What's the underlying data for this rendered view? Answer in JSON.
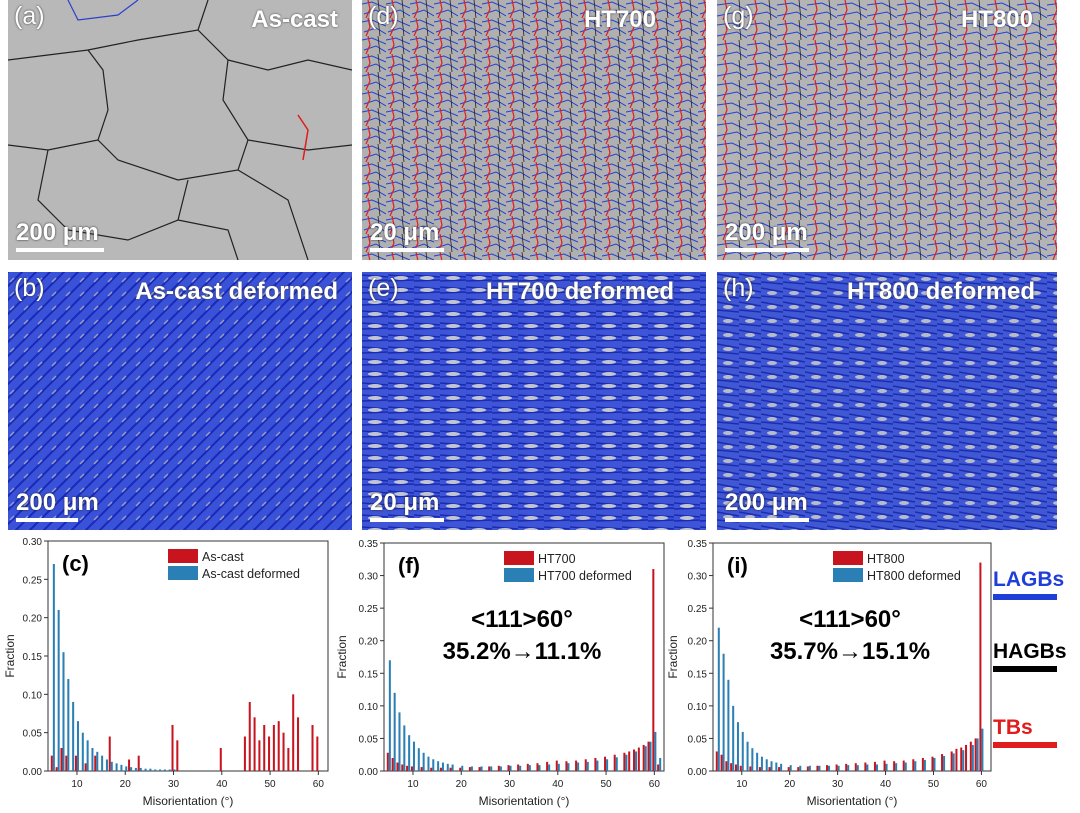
{
  "panels": {
    "a": {
      "label": "(a)",
      "title": "As-cast",
      "scale": "200 μm"
    },
    "d": {
      "label": "(d)",
      "title": "HT700",
      "scale": "20 μm"
    },
    "g": {
      "label": "(g)",
      "title": "HT800",
      "scale": "200 μm"
    },
    "b": {
      "label": "(b)",
      "title": "As-cast deformed",
      "scale": "200 μm"
    },
    "e": {
      "label": "(e)",
      "title": "HT700 deformed",
      "scale": "20 μm"
    },
    "h": {
      "label": "(h)",
      "title": "HT800 deformed",
      "scale": "200 μm"
    }
  },
  "colors": {
    "lagb": "#1f3fd8",
    "hagb": "#000000",
    "tb": "#e01c1c",
    "series_red": "#c8141e",
    "series_blue": "#2a7fb4",
    "grain": "#b9b9b9"
  },
  "boundary_legend": {
    "lagbs": "LAGBs",
    "hagbs": "HAGBs",
    "tbs": "TBs"
  },
  "chart_data": [
    {
      "id": "c",
      "type": "bar",
      "panel_label": "(c)",
      "xlabel": "Misorientation (°)",
      "ylabel": "Fraction",
      "xlim": [
        4,
        62
      ],
      "ylim": [
        0,
        0.3
      ],
      "xticks": [
        10,
        20,
        30,
        40,
        50,
        60
      ],
      "yticks": [
        0.0,
        0.05,
        0.1,
        0.15,
        0.2,
        0.25,
        0.3
      ],
      "annotation": [],
      "series": [
        {
          "name": "As-cast",
          "color": "#c8141e",
          "x": [
            5,
            6,
            7,
            8,
            10,
            12,
            14,
            17,
            21,
            23,
            30,
            31,
            40,
            45,
            46,
            47,
            48,
            49,
            50,
            51,
            52,
            53,
            54,
            55,
            56,
            59,
            60
          ],
          "values": [
            0.02,
            0.005,
            0.03,
            0.02,
            0.02,
            0.01,
            0.02,
            0.045,
            0.015,
            0.02,
            0.06,
            0.04,
            0.03,
            0.045,
            0.09,
            0.07,
            0.04,
            0.06,
            0.045,
            0.06,
            0.065,
            0.05,
            0.03,
            0.1,
            0.07,
            0.06,
            0.045
          ]
        },
        {
          "name": "As-cast deformed",
          "color": "#2a7fb4",
          "x": [
            5,
            6,
            7,
            8,
            9,
            10,
            11,
            12,
            13,
            14,
            15,
            16,
            17,
            18,
            19,
            20,
            21,
            22,
            23,
            24,
            25,
            26,
            27,
            28,
            29,
            30
          ],
          "values": [
            0.27,
            0.21,
            0.155,
            0.12,
            0.09,
            0.065,
            0.05,
            0.04,
            0.03,
            0.025,
            0.02,
            0.015,
            0.012,
            0.01,
            0.008,
            0.006,
            0.005,
            0.004,
            0.004,
            0.003,
            0.003,
            0.002,
            0.002,
            0.002,
            0.002,
            0.002
          ]
        }
      ]
    },
    {
      "id": "f",
      "type": "bar",
      "panel_label": "(f)",
      "xlabel": "Misorientation (°)",
      "ylabel": "Fraction",
      "xlim": [
        4,
        62
      ],
      "ylim": [
        0,
        0.35
      ],
      "xticks": [
        10,
        20,
        30,
        40,
        50,
        60
      ],
      "yticks": [
        0.0,
        0.05,
        0.1,
        0.15,
        0.2,
        0.25,
        0.3,
        0.35
      ],
      "annotation": [
        "<111>60°",
        "35.2%→11.1%"
      ],
      "series": [
        {
          "name": "HT700",
          "color": "#c8141e",
          "x": [
            5,
            6,
            7,
            8,
            9,
            10,
            12,
            14,
            16,
            18,
            20,
            22,
            24,
            26,
            28,
            30,
            32,
            34,
            36,
            38,
            40,
            42,
            44,
            46,
            48,
            50,
            52,
            54,
            55,
            56,
            57,
            58,
            59,
            60,
            61
          ],
          "values": [
            0.028,
            0.02,
            0.013,
            0.01,
            0.008,
            0.007,
            0.006,
            0.005,
            0.005,
            0.005,
            0.005,
            0.006,
            0.006,
            0.007,
            0.008,
            0.009,
            0.01,
            0.011,
            0.012,
            0.014,
            0.016,
            0.015,
            0.016,
            0.018,
            0.02,
            0.022,
            0.025,
            0.028,
            0.03,
            0.033,
            0.036,
            0.04,
            0.045,
            0.31,
            0.01
          ]
        },
        {
          "name": "HT700 deformed",
          "color": "#2a7fb4",
          "x": [
            5,
            6,
            7,
            8,
            9,
            10,
            11,
            12,
            13,
            14,
            15,
            16,
            17,
            18,
            20,
            22,
            24,
            26,
            28,
            30,
            32,
            34,
            36,
            38,
            40,
            42,
            44,
            46,
            48,
            50,
            52,
            54,
            56,
            58,
            59,
            60,
            61
          ],
          "values": [
            0.17,
            0.12,
            0.09,
            0.07,
            0.055,
            0.045,
            0.035,
            0.028,
            0.022,
            0.018,
            0.015,
            0.013,
            0.011,
            0.01,
            0.008,
            0.007,
            0.007,
            0.007,
            0.007,
            0.008,
            0.008,
            0.009,
            0.009,
            0.01,
            0.011,
            0.012,
            0.013,
            0.014,
            0.016,
            0.018,
            0.021,
            0.025,
            0.03,
            0.038,
            0.045,
            0.06,
            0.02
          ]
        }
      ]
    },
    {
      "id": "i",
      "type": "bar",
      "panel_label": "(i)",
      "xlabel": "Misorientation (°)",
      "ylabel": "Fraction",
      "xlim": [
        4,
        62
      ],
      "ylim": [
        0,
        0.35
      ],
      "xticks": [
        10,
        20,
        30,
        40,
        50,
        60
      ],
      "yticks": [
        0.0,
        0.05,
        0.1,
        0.15,
        0.2,
        0.25,
        0.3,
        0.35
      ],
      "annotation": [
        "<111>60°",
        "35.7%→15.1%"
      ],
      "series": [
        {
          "name": "HT800",
          "color": "#c8141e",
          "x": [
            5,
            6,
            7,
            8,
            9,
            10,
            12,
            14,
            16,
            18,
            20,
            22,
            24,
            26,
            28,
            30,
            32,
            34,
            36,
            38,
            40,
            42,
            44,
            46,
            48,
            50,
            52,
            54,
            55,
            56,
            57,
            58,
            59,
            60
          ],
          "values": [
            0.03,
            0.025,
            0.015,
            0.012,
            0.01,
            0.008,
            0.007,
            0.006,
            0.006,
            0.006,
            0.006,
            0.006,
            0.007,
            0.008,
            0.009,
            0.01,
            0.011,
            0.012,
            0.013,
            0.014,
            0.016,
            0.015,
            0.016,
            0.018,
            0.02,
            0.022,
            0.026,
            0.03,
            0.034,
            0.036,
            0.04,
            0.045,
            0.05,
            0.32
          ]
        },
        {
          "name": "HT800 deformed",
          "color": "#2a7fb4",
          "x": [
            5,
            6,
            7,
            8,
            9,
            10,
            11,
            12,
            13,
            14,
            15,
            16,
            17,
            18,
            20,
            22,
            24,
            26,
            28,
            30,
            32,
            34,
            36,
            38,
            40,
            42,
            44,
            46,
            48,
            50,
            52,
            54,
            56,
            58,
            59,
            60
          ],
          "values": [
            0.22,
            0.18,
            0.14,
            0.1,
            0.075,
            0.06,
            0.045,
            0.035,
            0.028,
            0.022,
            0.018,
            0.015,
            0.013,
            0.011,
            0.009,
            0.008,
            0.008,
            0.008,
            0.008,
            0.008,
            0.009,
            0.009,
            0.01,
            0.01,
            0.011,
            0.012,
            0.013,
            0.015,
            0.017,
            0.02,
            0.023,
            0.027,
            0.032,
            0.04,
            0.05,
            0.065
          ]
        }
      ]
    }
  ]
}
